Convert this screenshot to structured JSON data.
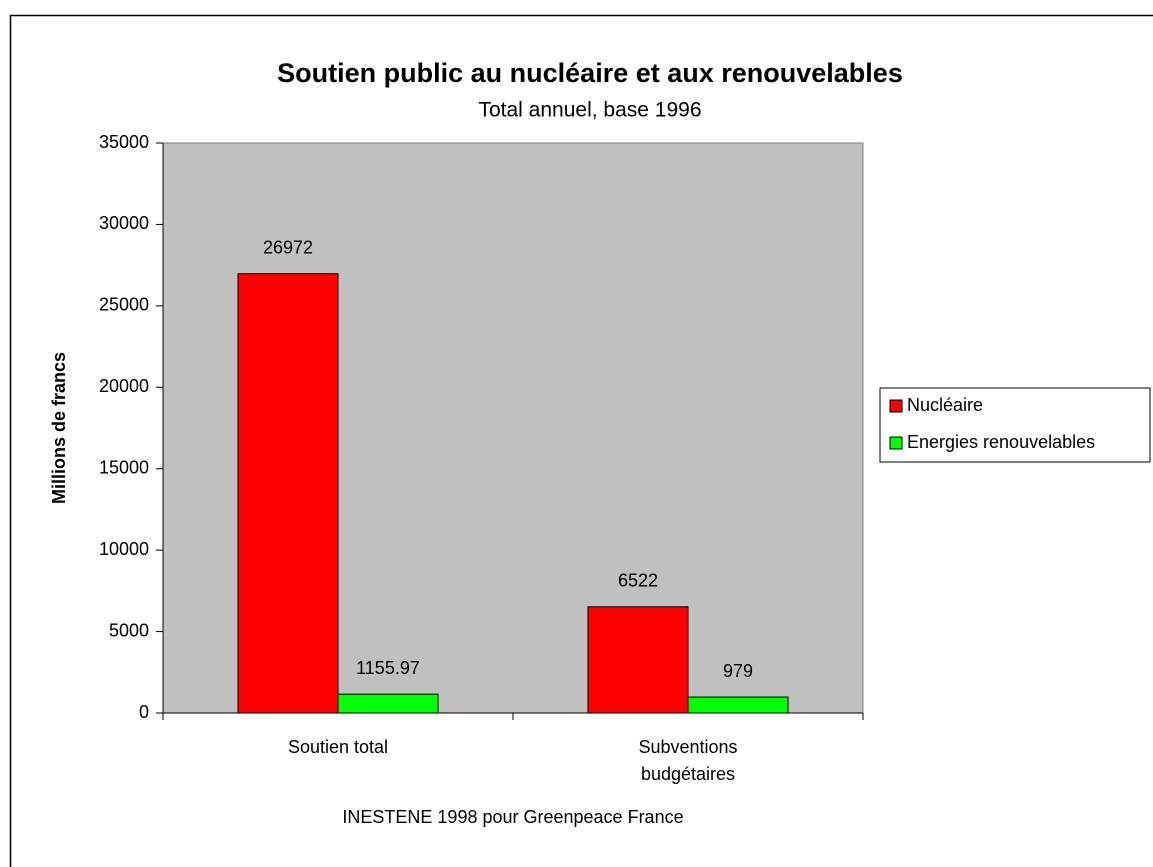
{
  "chart_data": {
    "type": "bar",
    "title": "Soutien public au nucléaire et aux renouvelables",
    "subtitle": "Total annuel, base 1996",
    "y_label": "Millions de francs",
    "note": "INESTENE 1998 pour Greenpeace France",
    "categories": [
      "Soutien total",
      "Subventions budgétaires"
    ],
    "series": [
      {
        "name": "Nucléaire",
        "color": "#ff0000",
        "values": [
          26972,
          6522
        ]
      },
      {
        "name": "Energies renouvelables",
        "color": "#00ff00",
        "values": [
          1155.97,
          979
        ]
      }
    ],
    "ylim": [
      0,
      35000
    ],
    "yticks": [
      0,
      5000,
      10000,
      15000,
      20000,
      25000,
      30000,
      35000
    ],
    "legend": "right",
    "plot_background": "#c0c0c0"
  }
}
